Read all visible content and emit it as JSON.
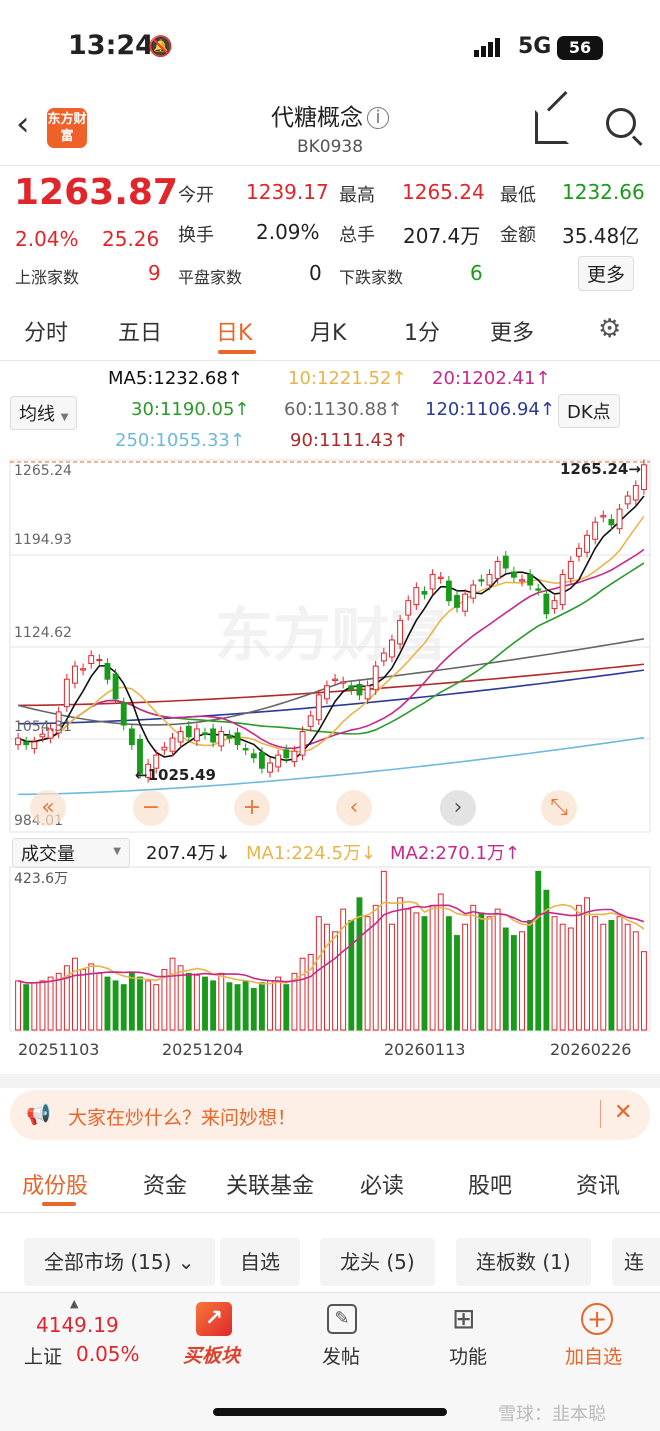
{
  "status": {
    "time": "13:24",
    "network": "5G",
    "battery": "56"
  },
  "header": {
    "title": "代糖概念",
    "code": "BK0938",
    "logo": "东方财富",
    "icons": [
      "back-icon",
      "info-icon",
      "share-icon",
      "search-icon"
    ]
  },
  "quote": {
    "price": "1263.87",
    "change_pct": "2.04%",
    "change": "25.26",
    "open_label": "今开",
    "open": "1239.17",
    "high_label": "最高",
    "high": "1265.24",
    "low_label": "最低",
    "low": "1232.66",
    "turnover_label": "换手",
    "turnover": "2.09%",
    "volume_label": "总手",
    "volume": "207.4万",
    "amount_label": "金额",
    "amount": "35.48亿",
    "up_label": "上涨家数",
    "up": "9",
    "flat_label": "平盘家数",
    "flat": "0",
    "down_label": "下跌家数",
    "down": "6",
    "more": "更多"
  },
  "tabs": [
    "分时",
    "五日",
    "日K",
    "月K",
    "1分",
    "更多"
  ],
  "active_tab": "日K",
  "ma": {
    "selector": "均线",
    "dk": "DK点",
    "items": [
      {
        "label": "MA5:1232.68↑",
        "color": "#111111"
      },
      {
        "label": "10:1221.52↑",
        "color": "#e8b54a"
      },
      {
        "label": "20:1202.41↑",
        "color": "#c8288a"
      },
      {
        "label": "30:1190.05↑",
        "color": "#2a9a2a"
      },
      {
        "label": "60:1130.88↑",
        "color": "#666666"
      },
      {
        "label": "120:1106.94↑",
        "color": "#2a3a9a"
      },
      {
        "label": "250:1055.33↑",
        "color": "#6fb8e0"
      },
      {
        "label": "90:1111.43↑",
        "color": "#b02a2a"
      }
    ]
  },
  "chart": {
    "y_labels": [
      "1265.24",
      "1194.93",
      "1124.62",
      "1054.31",
      "984.01"
    ],
    "max_marker": "1265.24→",
    "min_marker": "←1025.49",
    "watermark": "东方财富",
    "closes": [
      1055,
      1050,
      1052,
      1058,
      1062,
      1075,
      1100,
      1110,
      1108,
      1118,
      1115,
      1100,
      1085,
      1065,
      1050,
      1028,
      1035,
      1042,
      1048,
      1055,
      1060,
      1056,
      1062,
      1058,
      1052,
      1060,
      1055,
      1050,
      1046,
      1040,
      1032,
      1036,
      1042,
      1040,
      1045,
      1060,
      1072,
      1088,
      1095,
      1100,
      1098,
      1092,
      1088,
      1095,
      1110,
      1120,
      1130,
      1145,
      1160,
      1170,
      1165,
      1180,
      1178,
      1160,
      1155,
      1165,
      1172,
      1175,
      1180,
      1190,
      1185,
      1178,
      1176,
      1172,
      1168,
      1150,
      1160,
      1180,
      1190,
      1200,
      1210,
      1220,
      1225,
      1218,
      1230,
      1240,
      1248,
      1263.87
    ]
  },
  "volume": {
    "selector": "成交量",
    "value": "207.4万↓",
    "ma1": "MA1:224.5万↓",
    "ma2": "MA2:270.1万↑",
    "max_label": "423.6万",
    "values": [
      130,
      120,
      125,
      130,
      140,
      150,
      170,
      190,
      160,
      175,
      150,
      140,
      130,
      120,
      150,
      140,
      130,
      120,
      160,
      190,
      170,
      150,
      145,
      140,
      130,
      150,
      125,
      120,
      130,
      110,
      125,
      130,
      140,
      120,
      150,
      190,
      200,
      300,
      280,
      260,
      320,
      290,
      350,
      300,
      330,
      420,
      280,
      350,
      320,
      310,
      300,
      330,
      360,
      300,
      250,
      280,
      330,
      310,
      300,
      320,
      270,
      250,
      260,
      290,
      420,
      370,
      300,
      280,
      270,
      330,
      350,
      300,
      280,
      290,
      300,
      280,
      260,
      207.4
    ],
    "dates": [
      "20251103",
      "20251204",
      "20260113",
      "20260226"
    ]
  },
  "banner": {
    "text": "大家在炒什么？来问妙想！"
  },
  "section_tabs": [
    "成份股",
    "资金",
    "关联基金",
    "必读",
    "股吧",
    "资讯"
  ],
  "filters": [
    "全部市场 (15) ⌄",
    "自选",
    "龙头 (5)",
    "连板数 (1)",
    "连板"
  ],
  "bottom": {
    "index_value": "4149.19",
    "index_name": "上证",
    "index_change": "0.05%",
    "buy": "买板块",
    "post": "发帖",
    "func": "功能",
    "add": "加自选",
    "watermark": "雪球：韭本聪"
  }
}
